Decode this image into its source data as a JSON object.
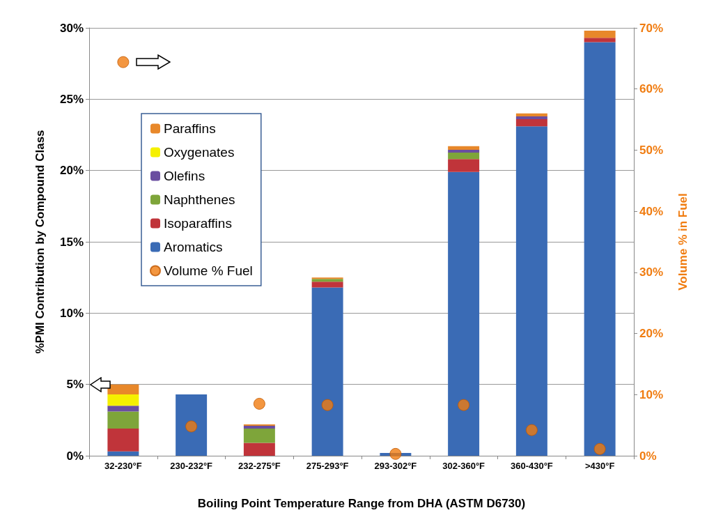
{
  "chart_data": {
    "type": "bar",
    "stacked": true,
    "xlabel": "Boiling Point Temperature Range from DHA (ASTM D6730)",
    "ylabel": "%PMI Contribution by Compound Class",
    "y2label": "Volume % in Fuel",
    "categories": [
      "32-230°F",
      "230-232°F",
      "232-275°F",
      "275-293°F",
      "293-302°F",
      "302-360°F",
      "360-430°F",
      ">430°F"
    ],
    "series": [
      {
        "name": "Aromatics",
        "color": "#3a6bb5",
        "values": [
          0.3,
          4.3,
          0,
          11.8,
          0.2,
          19.9,
          23.1,
          29.0
        ]
      },
      {
        "name": "Isoparaffins",
        "color": "#c0343a",
        "values": [
          1.6,
          0,
          0.9,
          0.4,
          0,
          0.9,
          0.5,
          0.3
        ]
      },
      {
        "name": "Naphthenes",
        "color": "#7ea53a",
        "values": [
          1.2,
          0,
          1.0,
          0.2,
          0,
          0.45,
          0,
          0
        ]
      },
      {
        "name": "Olefins",
        "color": "#6a4ea0",
        "values": [
          0.4,
          0,
          0.2,
          0,
          0,
          0.2,
          0.2,
          0
        ]
      },
      {
        "name": "Oxygenates",
        "color": "#f5f000",
        "values": [
          0.8,
          0,
          0,
          0,
          0,
          0,
          0,
          0
        ]
      },
      {
        "name": "Paraffins",
        "color": "#e8882a",
        "values": [
          0.7,
          0,
          0.1,
          0.1,
          0,
          0.25,
          0.2,
          0.5
        ]
      },
      {
        "name": "Volume % Fuel",
        "type": "scatter",
        "axis": "y2",
        "color": "#f07c10",
        "values": [
          64.4,
          4.8,
          8.5,
          8.3,
          0.3,
          8.3,
          4.2,
          1.1
        ]
      }
    ],
    "ylim": [
      0,
      30
    ],
    "yticks": [
      {
        "value": 0,
        "label": "0%"
      },
      {
        "value": 5,
        "label": "5%"
      },
      {
        "value": 10,
        "label": "10%"
      },
      {
        "value": 15,
        "label": "15%"
      },
      {
        "value": 20,
        "label": "20%"
      },
      {
        "value": 25,
        "label": "25%"
      },
      {
        "value": 30,
        "label": "30%"
      }
    ],
    "y2lim": [
      0,
      70
    ],
    "y2ticks": [
      {
        "value": 0,
        "label": "0%"
      },
      {
        "value": 10,
        "label": "10%"
      },
      {
        "value": 20,
        "label": "20%"
      },
      {
        "value": 30,
        "label": "30%"
      },
      {
        "value": 40,
        "label": "40%"
      },
      {
        "value": 50,
        "label": "50%"
      },
      {
        "value": 60,
        "label": "60%"
      },
      {
        "value": 70,
        "label": "70%"
      }
    ],
    "grid": "y",
    "legend": "top left",
    "marker": "circle"
  }
}
